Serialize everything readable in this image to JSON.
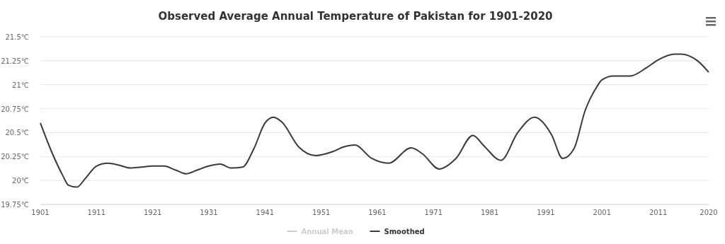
{
  "chart_data": {
    "type": "line",
    "title": "Observed Average Annual Temperature of Pakistan for 1901-2020",
    "xlim": [
      1901,
      2020
    ],
    "xticks": [
      1901,
      1911,
      1921,
      1931,
      1941,
      1951,
      1961,
      1971,
      1981,
      1991,
      2001,
      2011,
      2020
    ],
    "ylim": [
      19.75,
      21.5
    ],
    "yticks": [
      {
        "value": 19.75,
        "label": "19.75℃"
      },
      {
        "value": 20,
        "label": "20℃"
      },
      {
        "value": 20.25,
        "label": "20.25℃"
      },
      {
        "value": 20.5,
        "label": "20.5℃"
      },
      {
        "value": 20.75,
        "label": "20.75℃"
      },
      {
        "value": 21,
        "label": "21℃"
      },
      {
        "value": 21.25,
        "label": "21.25℃"
      },
      {
        "value": 21.5,
        "label": "21.5℃"
      }
    ],
    "grid": "y",
    "legend": "bottom",
    "marker": "none",
    "series": [
      {
        "name": "Annual Mean",
        "color": "#cccccc"
      },
      {
        "name": "Smoothed",
        "color": "#3a3a3a",
        "x": [
          1901,
          1903,
          1905,
          1906,
          1907.5,
          1909,
          1911,
          1913,
          1915,
          1917,
          1919,
          1921,
          1923,
          1925,
          1927,
          1929,
          1931,
          1933,
          1935,
          1937,
          1939,
          1941,
          1942.5,
          1944,
          1947,
          1950,
          1953,
          1955,
          1957,
          1960,
          1963,
          1967,
          1969,
          1972,
          1975,
          1978,
          1980,
          1983,
          1986,
          1989,
          1992,
          1994,
          1996,
          1998,
          2000,
          2001,
          2003,
          2006,
          2009,
          2011,
          2014,
          2015,
          2018,
          2020
        ],
        "values": [
          20.6,
          20.3,
          20.05,
          19.95,
          19.93,
          20.02,
          20.15,
          20.18,
          20.16,
          20.13,
          20.14,
          20.15,
          20.15,
          20.11,
          20.07,
          20.11,
          20.15,
          20.17,
          20.13,
          20.14,
          20.33,
          20.6,
          20.66,
          20.61,
          20.35,
          20.26,
          20.3,
          20.35,
          20.37,
          20.23,
          20.18,
          20.34,
          20.28,
          20.12,
          20.23,
          20.47,
          20.36,
          20.21,
          20.5,
          20.66,
          20.48,
          20.23,
          20.33,
          20.73,
          20.97,
          21.05,
          21.09,
          21.09,
          21.18,
          21.26,
          21.32,
          21.32,
          21.25,
          21.13
        ]
      }
    ]
  }
}
